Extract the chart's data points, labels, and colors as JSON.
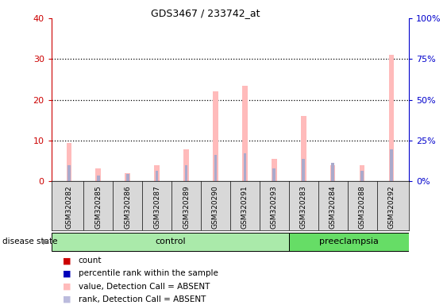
{
  "title": "GDS3467 / 233742_at",
  "samples": [
    "GSM320282",
    "GSM320285",
    "GSM320286",
    "GSM320287",
    "GSM320289",
    "GSM320290",
    "GSM320291",
    "GSM320293",
    "GSM320283",
    "GSM320284",
    "GSM320288",
    "GSM320292"
  ],
  "groups": [
    "control",
    "control",
    "control",
    "control",
    "control",
    "control",
    "control",
    "control",
    "preeclampsia",
    "preeclampsia",
    "preeclampsia",
    "preeclampsia"
  ],
  "absent_value": [
    9.5,
    3.2,
    2.0,
    4.0,
    7.8,
    22.0,
    23.5,
    5.5,
    16.0,
    4.0,
    4.0,
    31.0
  ],
  "absent_rank": [
    9.8,
    3.8,
    4.8,
    6.5,
    9.8,
    16.5,
    17.5,
    8.0,
    14.0,
    11.5,
    6.8,
    19.5
  ],
  "ylim_left": [
    0,
    40
  ],
  "ylim_right": [
    0,
    100
  ],
  "yticks_left": [
    0,
    10,
    20,
    30,
    40
  ],
  "yticks_right": [
    0,
    25,
    50,
    75,
    100
  ],
  "ytick_labels_left": [
    "0",
    "10",
    "20",
    "30",
    "40"
  ],
  "ytick_labels_right": [
    "0%",
    "25%",
    "50%",
    "75%",
    "100%"
  ],
  "legend_items": [
    {
      "label": "count",
      "color": "#cc0000"
    },
    {
      "label": "percentile rank within the sample",
      "color": "#0000bb"
    },
    {
      "label": "value, Detection Call = ABSENT",
      "color": "#ffbbbb"
    },
    {
      "label": "rank, Detection Call = ABSENT",
      "color": "#bbbbdd"
    }
  ],
  "bar_color_absent_value": "#ffbbbb",
  "bar_color_absent_rank": "#aaaacc",
  "bar_color_count": "#cc0000",
  "bar_color_percentile": "#0000bb",
  "ylabel_left_color": "#cc0000",
  "ylabel_right_color": "#0000cc",
  "disease_state_label": "disease state",
  "n_control": 8,
  "n_preeclampsia": 4
}
